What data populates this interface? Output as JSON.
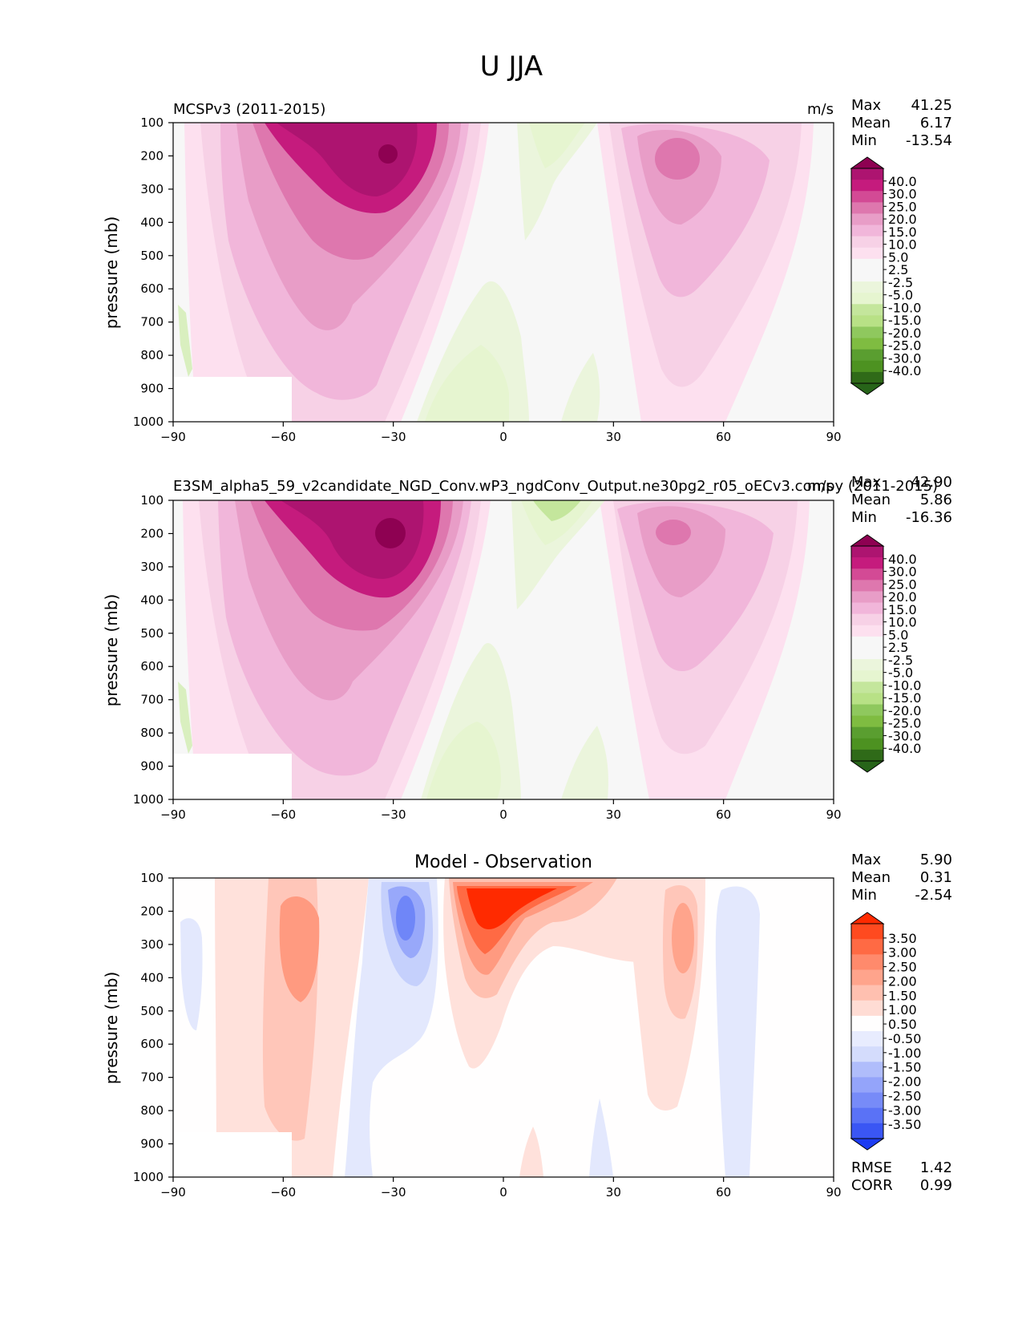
{
  "figure_title": "U JJA",
  "chart_data": [
    {
      "type": "contour",
      "panel": "test",
      "title_left": "MCSPv3 (2011-2015)",
      "title_center": "",
      "title_right": "m/s",
      "xlabel": "",
      "ylabel": "pressure (mb)",
      "xlim": [
        -90,
        90
      ],
      "ylim": [
        1000,
        100
      ],
      "xticks": [
        "−90",
        "−60",
        "−30",
        "0",
        "30",
        "60",
        "90"
      ],
      "xtick_values": [
        -90,
        -60,
        -30,
        0,
        30,
        60,
        90
      ],
      "yticks": [
        "100",
        "200",
        "300",
        "400",
        "500",
        "600",
        "700",
        "800",
        "900",
        "1000"
      ],
      "ytick_values": [
        100,
        200,
        300,
        400,
        500,
        600,
        700,
        800,
        900,
        1000
      ],
      "stats": [
        {
          "label": "Max",
          "value": "41.25"
        },
        {
          "label": "Mean",
          "value": "6.17"
        },
        {
          "label": "Min",
          "value": "-13.54"
        }
      ],
      "colorbar_labels": [
        "40.0",
        "30.0",
        "25.0",
        "20.0",
        "15.0",
        "10.0",
        "5.0",
        "2.5",
        "-2.5",
        "-5.0",
        "-10.0",
        "-15.0",
        "-20.0",
        "-25.0",
        "-30.0",
        "-40.0"
      ],
      "colorbar_colors": [
        "#8e0152",
        "#ad1470",
        "#c51b7d",
        "#d34a95",
        "#de77ae",
        "#e89dc7",
        "#f1b6da",
        "#f7d1e6",
        "#fde0ef",
        "#f7f7f7",
        "#f7f7f7",
        "#ebf5dc",
        "#e6f5d0",
        "#c4e69c",
        "#b8e186",
        "#8fc85e",
        "#7fbc41",
        "#5a9e30",
        "#4d9221",
        "#2f6a18",
        "#276419"
      ],
      "fields": [
        {
          "name": "southern-jet",
          "lon": -32,
          "p": 200,
          "value": 41.25
        },
        {
          "name": "northern-jet",
          "lon": 48,
          "p": 215,
          "value": 22
        },
        {
          "name": "equatorial-easterlies-upper",
          "lon": 5,
          "p": 120,
          "value": -8
        },
        {
          "name": "equatorial-easterlies-lower",
          "lon": -7,
          "p": 860,
          "value": -11
        }
      ]
    },
    {
      "type": "contour",
      "panel": "reference",
      "title_left": "E3SM_alpha5_59_v2candidate_NGD_Conv.wP3_ngdConv_Output.ne30pg2_r05_oECv3.compy (2011-2015)",
      "title_center": "",
      "title_right": "m/s",
      "xlabel": "",
      "ylabel": "pressure (mb)",
      "xlim": [
        -90,
        90
      ],
      "ylim": [
        1000,
        100
      ],
      "xticks": [
        "−90",
        "−60",
        "−30",
        "0",
        "30",
        "60",
        "90"
      ],
      "xtick_values": [
        -90,
        -60,
        -30,
        0,
        30,
        60,
        90
      ],
      "yticks": [
        "100",
        "200",
        "300",
        "400",
        "500",
        "600",
        "700",
        "800",
        "900",
        "1000"
      ],
      "ytick_values": [
        100,
        200,
        300,
        400,
        500,
        600,
        700,
        800,
        900,
        1000
      ],
      "stats": [
        {
          "label": "Max",
          "value": "42.90"
        },
        {
          "label": "Mean",
          "value": "5.86"
        },
        {
          "label": "Min",
          "value": "-16.36"
        }
      ],
      "colorbar_labels": [
        "40.0",
        "30.0",
        "25.0",
        "20.0",
        "15.0",
        "10.0",
        "5.0",
        "2.5",
        "-2.5",
        "-5.0",
        "-10.0",
        "-15.0",
        "-20.0",
        "-25.0",
        "-30.0",
        "-40.0"
      ],
      "colorbar_colors": [
        "#8e0152",
        "#ad1470",
        "#c51b7d",
        "#d34a95",
        "#de77ae",
        "#e89dc7",
        "#f1b6da",
        "#f7d1e6",
        "#fde0ef",
        "#f7f7f7",
        "#f7f7f7",
        "#ebf5dc",
        "#e6f5d0",
        "#c4e69c",
        "#b8e186",
        "#8fc85e",
        "#7fbc41",
        "#5a9e30",
        "#4d9221",
        "#2f6a18",
        "#276419"
      ],
      "fields": [
        {
          "name": "southern-jet",
          "lon": -30,
          "p": 210,
          "value": 42.9
        },
        {
          "name": "northern-jet",
          "lon": 48,
          "p": 205,
          "value": 22
        },
        {
          "name": "equatorial-easterlies-upper",
          "lon": 5,
          "p": 140,
          "value": -9
        },
        {
          "name": "equatorial-easterlies-lower",
          "lon": -7,
          "p": 860,
          "value": -12
        }
      ]
    },
    {
      "type": "contour",
      "panel": "difference",
      "title_left": "",
      "title_center": "Model - Observation",
      "title_right": "",
      "xlabel": "",
      "ylabel": "pressure (mb)",
      "xlim": [
        -90,
        90
      ],
      "ylim": [
        1000,
        100
      ],
      "xticks": [
        "−90",
        "−60",
        "−30",
        "0",
        "30",
        "60",
        "90"
      ],
      "xtick_values": [
        -90,
        -60,
        -30,
        0,
        30,
        60,
        90
      ],
      "yticks": [
        "100",
        "200",
        "300",
        "400",
        "500",
        "600",
        "700",
        "800",
        "900",
        "1000"
      ],
      "ytick_values": [
        100,
        200,
        300,
        400,
        500,
        600,
        700,
        800,
        900,
        1000
      ],
      "stats": [
        {
          "label": "Max",
          "value": "5.90"
        },
        {
          "label": "Mean",
          "value": "0.31"
        },
        {
          "label": "Min",
          "value": "-2.54"
        }
      ],
      "extra_stats": [
        {
          "label": "RMSE",
          "value": "1.42"
        },
        {
          "label": "CORR",
          "value": "0.99"
        }
      ],
      "colorbar_labels": [
        "3.50",
        "3.00",
        "2.50",
        "2.00",
        "1.50",
        "1.00",
        "0.50",
        "-0.50",
        "-1.00",
        "-1.50",
        "-2.00",
        "-2.50",
        "-3.00",
        "-3.50"
      ],
      "colorbar_colors": [
        "#ff2a00",
        "#ff4a1f",
        "#ff6a44",
        "#ff8a6c",
        "#ffa48c",
        "#ffc0b0",
        "#ffdcd4",
        "#fffefe",
        "#e8ecfe",
        "#d4dcfc",
        "#b0bdfb",
        "#94a4fa",
        "#778bf8",
        "#5a72f6",
        "#3a56f4",
        "#1d3cf2"
      ],
      "fields": [
        {
          "name": "positive-bias-equator",
          "lon": -2,
          "p": 190,
          "value": 5.9
        },
        {
          "name": "negative-bias-30s",
          "lon": -27,
          "p": 220,
          "value": -2.54
        },
        {
          "name": "positive-bias-60s",
          "lon": -56,
          "p": 300,
          "value": 2.1
        },
        {
          "name": "positive-bias-50n",
          "lon": 48,
          "p": 330,
          "value": 1.9
        },
        {
          "name": "negative-bias-65n",
          "lon": 65,
          "p": 400,
          "value": -0.8
        }
      ]
    }
  ]
}
